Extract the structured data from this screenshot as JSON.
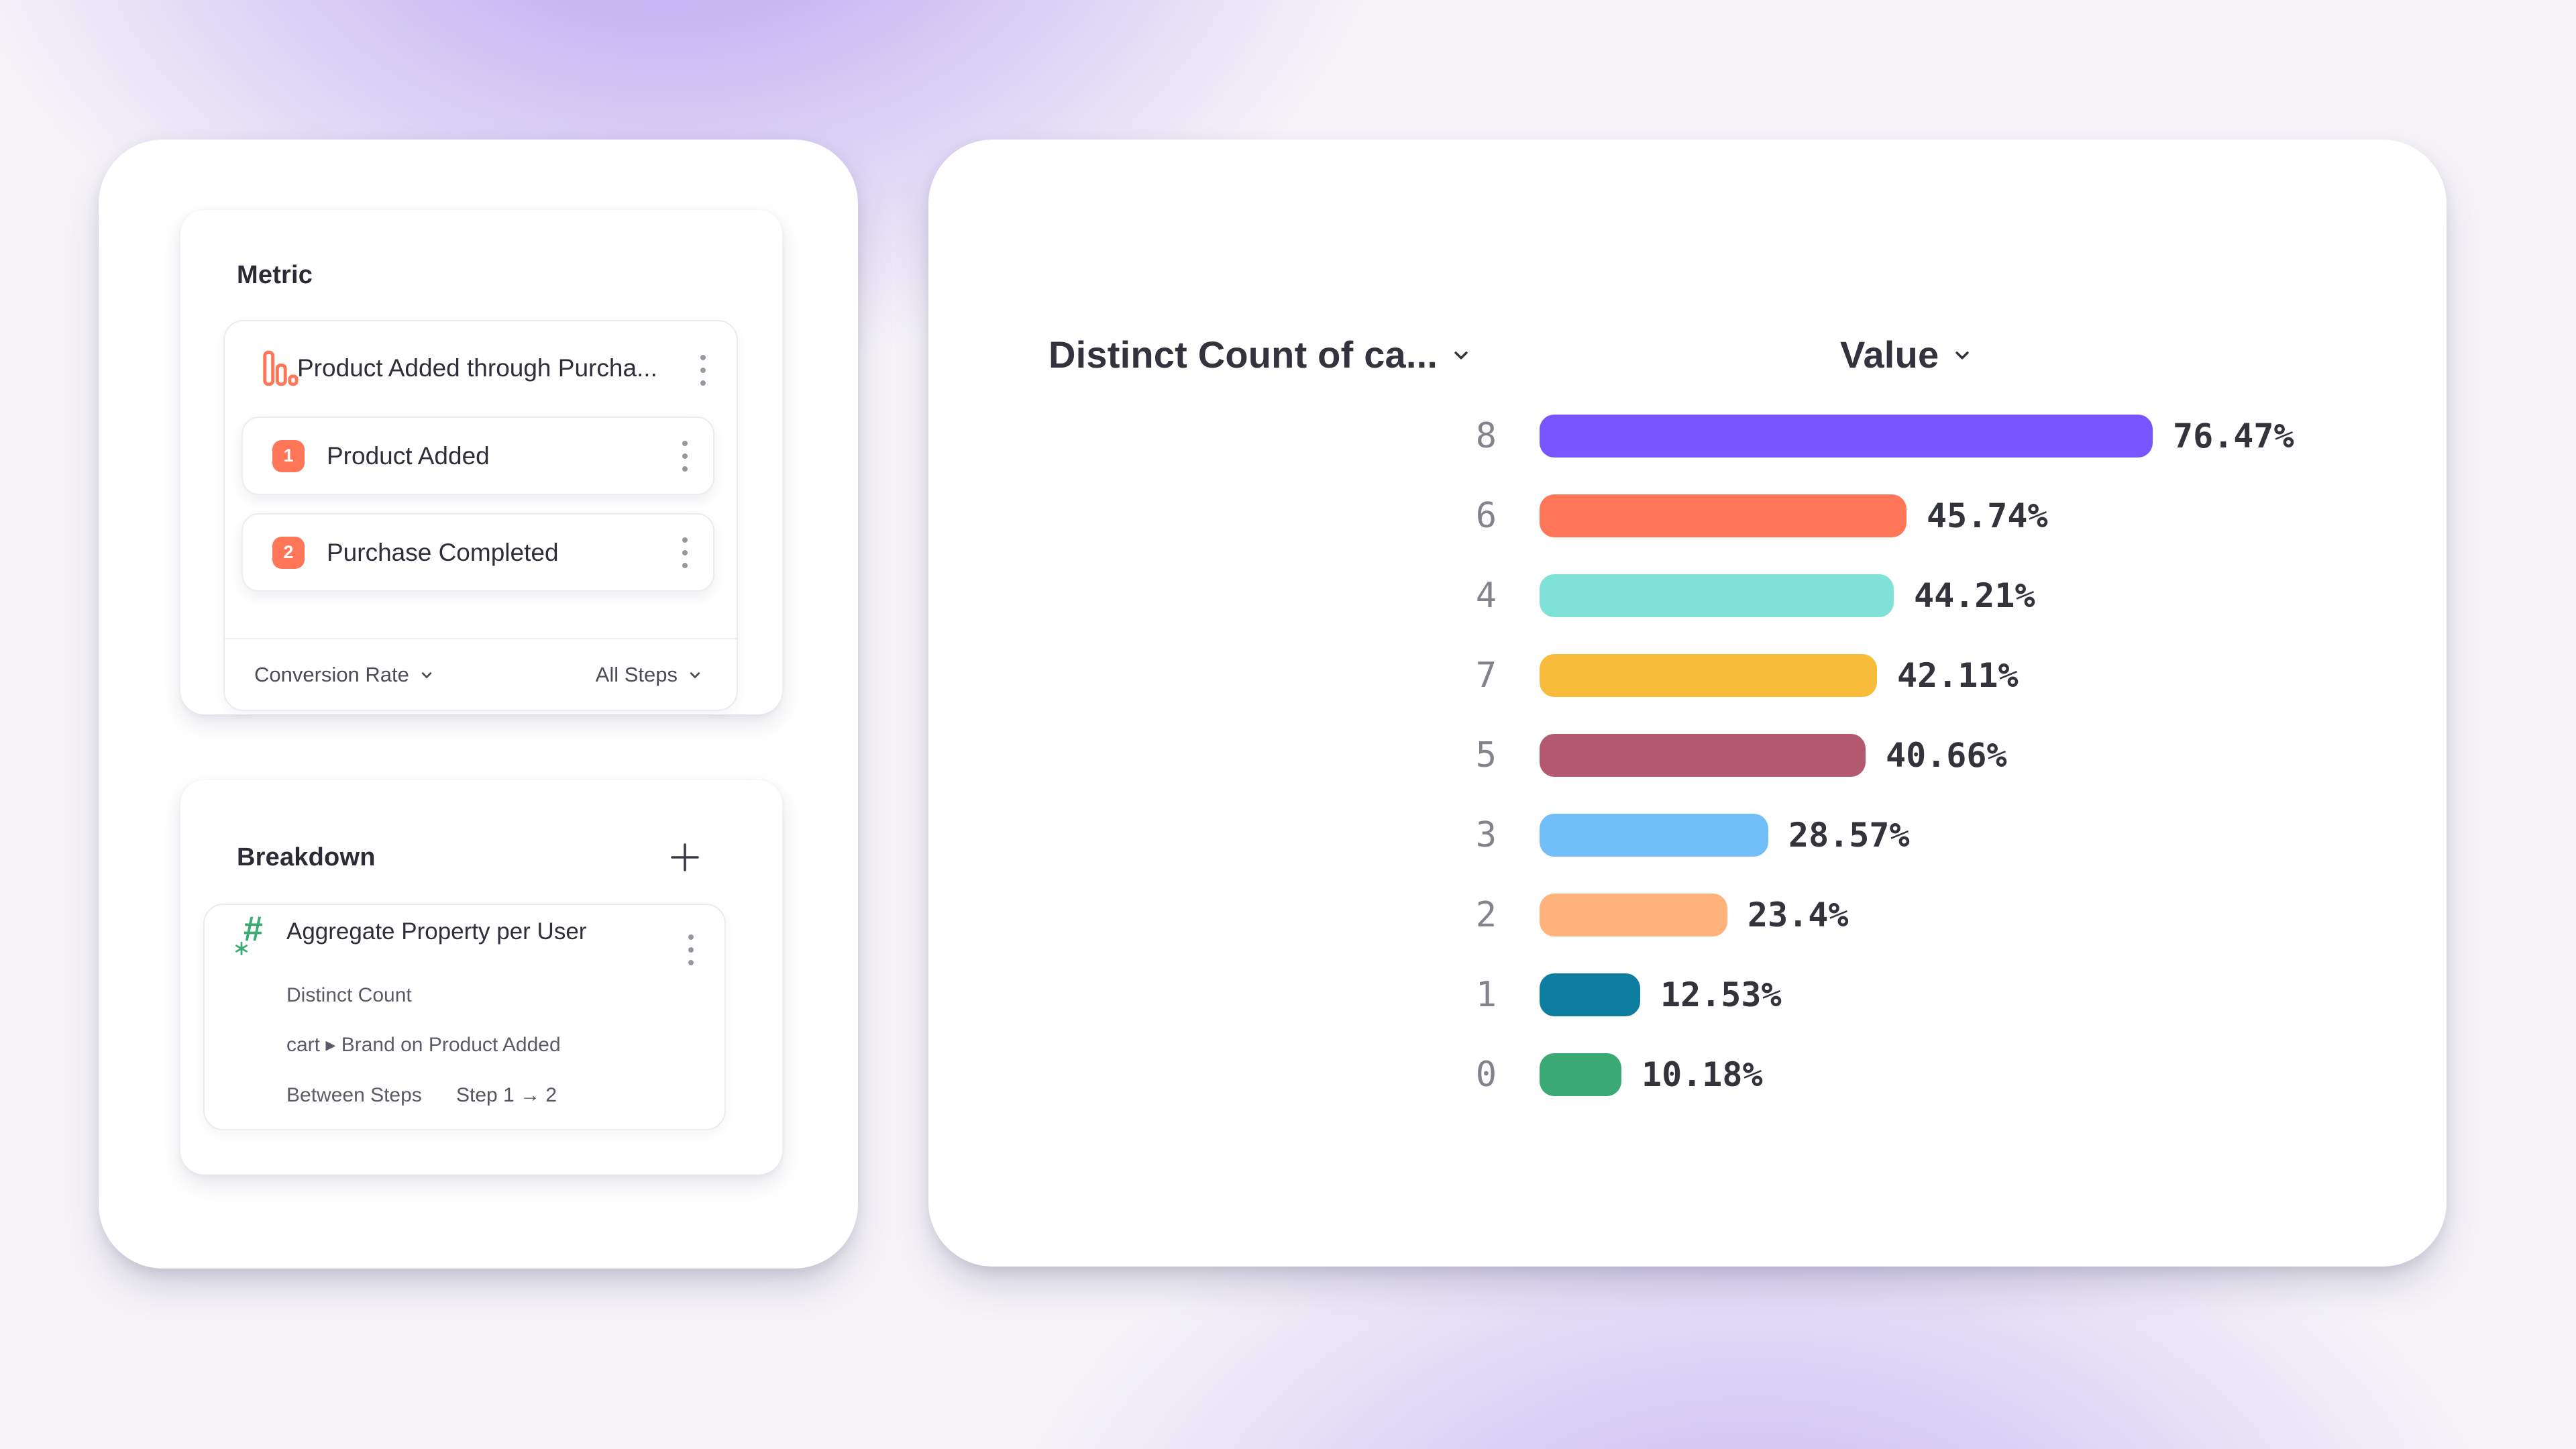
{
  "colors": {
    "background_base": "#F6F4F8",
    "glow_purple": "#7C55EB",
    "accent_orange": "#FF7557",
    "icon_green": "#3BA974",
    "card_background": "#FFFFFF",
    "text_dark": "#2F2F39",
    "text_gray": "#5C5C66",
    "category_label_gray": "#83838C"
  },
  "icons": {
    "funnel": "funnel-bars-icon",
    "menu": "kebab-menu-icon",
    "add": "plus-icon",
    "property": "hash-asterisk-icon",
    "dropdown": "chevron-down-icon"
  },
  "metric_panel": {
    "title": "Metric",
    "funnel": {
      "name": "Product Added through Purcha...",
      "steps": [
        {
          "number": "1",
          "label": "Product Added"
        },
        {
          "number": "2",
          "label": "Purchase Completed"
        }
      ],
      "measure_label": "Conversion Rate",
      "steps_scope_label": "All Steps"
    }
  },
  "breakdown_panel": {
    "title": "Breakdown",
    "property": {
      "name": "Aggregate Property per User",
      "aggregation": "Distinct Count",
      "path": "cart ▸ Brand on Product Added",
      "between_label": "Between Steps",
      "between_value": "Step 1 → 2"
    }
  },
  "chart_header": {
    "category_label": "Distinct Count of ca...",
    "value_label": "Value"
  },
  "chart_data": {
    "type": "bar",
    "orientation": "horizontal",
    "title": "",
    "xlabel": "Value",
    "ylabel": "Distinct Count of ca...",
    "categories": [
      "8",
      "6",
      "4",
      "7",
      "5",
      "3",
      "2",
      "1",
      "0"
    ],
    "values": [
      76.47,
      45.74,
      44.21,
      42.11,
      40.66,
      28.57,
      23.4,
      12.53,
      10.18
    ],
    "value_labels": [
      "76.47%",
      "45.74%",
      "44.21%",
      "42.11%",
      "40.66%",
      "28.57%",
      "23.4%",
      "12.53%",
      "10.18%"
    ],
    "bar_colors": [
      "#7856FF",
      "#FF7557",
      "#80E1D9",
      "#F8BC3B",
      "#B2596E",
      "#72BEF8",
      "#FFB27A",
      "#0D7EA0",
      "#3BA974"
    ],
    "unit": "%",
    "xlim": [
      0,
      80
    ],
    "grid": false,
    "value_label_position": "end"
  }
}
